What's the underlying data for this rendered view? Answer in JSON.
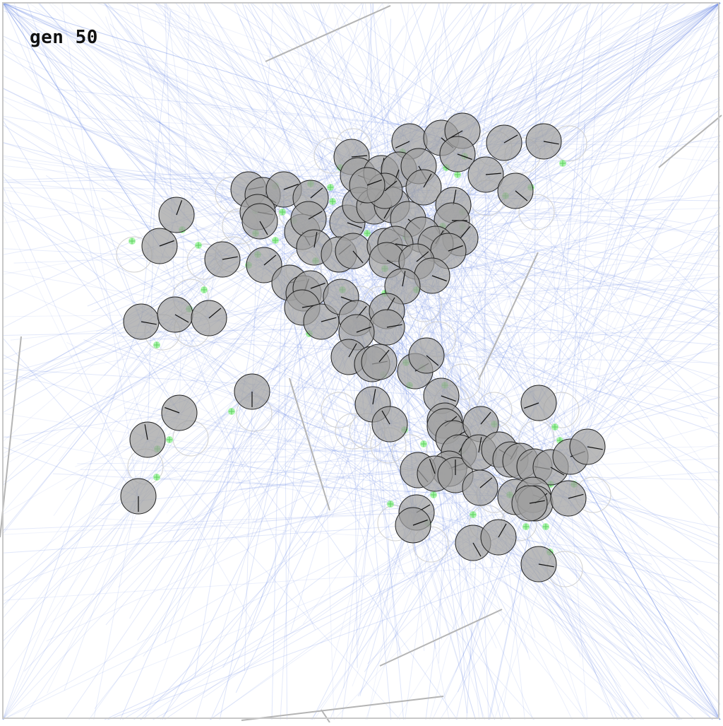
{
  "generation_label": "gen 50",
  "colors": {
    "background": "#ffffff",
    "frame": "#c8c8c8",
    "wall": "#b4b4b4",
    "sensor_ray": "#6e8ce6",
    "agent_fill": "#a0a0a0",
    "agent_stroke": "#202020",
    "food": "#8ef08e",
    "ghost_ring": "#d0d0d0"
  },
  "simulation": {
    "agent_icon": "circle-agent-icon",
    "food_icon": "food-pellet-icon",
    "wall_icon": "wall-segment-icon"
  }
}
